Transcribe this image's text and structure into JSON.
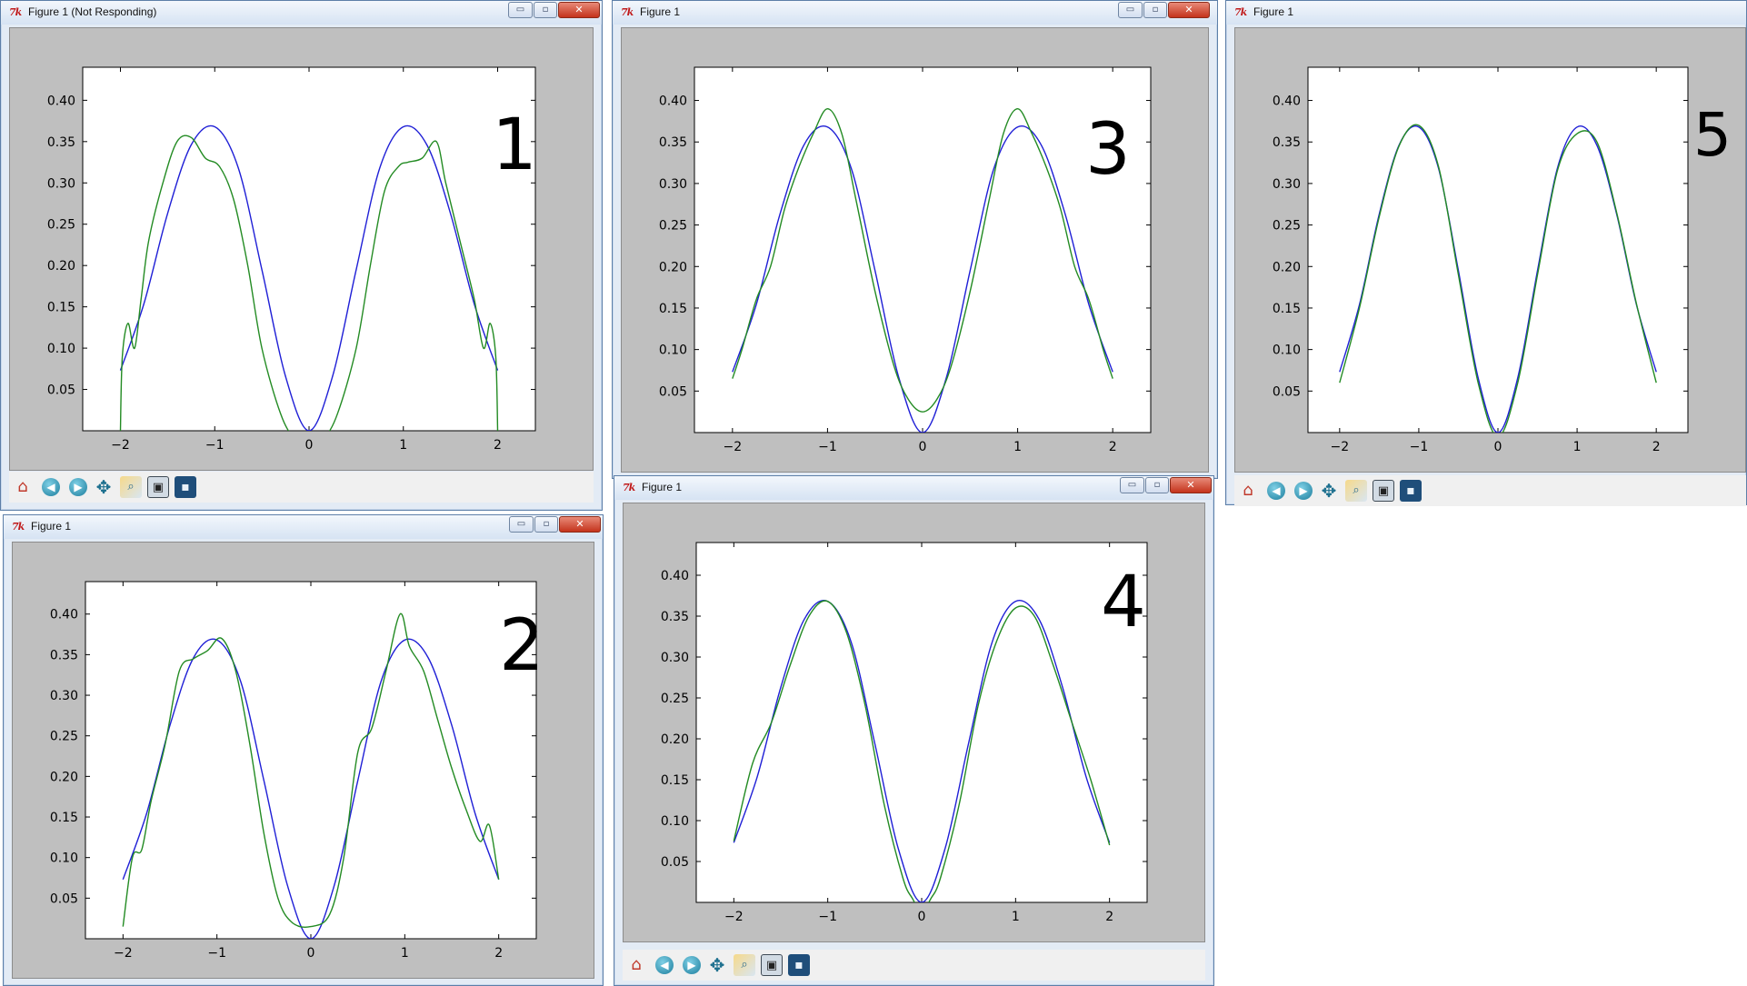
{
  "colors": {
    "curve_blue": "#1f1fd6",
    "curve_green": "#238b23",
    "plot_frame_bg": "#bfbfbf",
    "title_icon": "#c01818",
    "close_button": "#c4331c"
  },
  "window_controls": {
    "minimize": "▭",
    "maximize": "▫",
    "close": "✕"
  },
  "toolbar": {
    "icons": [
      "home-icon",
      "back-icon",
      "forward-icon",
      "pan-icon",
      "zoom-icon",
      "configure-subplots-icon",
      "save-icon"
    ],
    "glyphs": {
      "home": "⌂",
      "back": "◀",
      "forward": "▶",
      "pan": "✥",
      "zoom": "⌕",
      "config": "▣",
      "save": "▪"
    }
  },
  "windows": [
    {
      "id": "fig1",
      "title": "Figure 1 (Not Responding)",
      "annotation": "1",
      "tk_icon": "7k"
    },
    {
      "id": "fig2",
      "title": "Figure 1",
      "annotation": "2",
      "tk_icon": "7k"
    },
    {
      "id": "fig3",
      "title": "Figure 1",
      "annotation": "3",
      "tk_icon": "7k"
    },
    {
      "id": "fig4",
      "title": "Figure 1",
      "annotation": "4",
      "tk_icon": "7k"
    },
    {
      "id": "fig5",
      "title": "Figure 1",
      "annotation": "5",
      "tk_icon": "7k"
    }
  ],
  "chart_data": [
    {
      "type": "line",
      "xlim": [
        -2.4,
        2.4
      ],
      "ylim": [
        0,
        0.44
      ],
      "xticks": [
        "−2",
        "−1",
        "0",
        "1",
        "2"
      ],
      "yticks": [
        "0.05",
        "0.10",
        "0.15",
        "0.20",
        "0.25",
        "0.30",
        "0.35",
        "0.40"
      ],
      "series": [
        {
          "color": "#1f1fd6",
          "x": [
            -2,
            -1.75,
            -1.5,
            -1.25,
            -1,
            -0.75,
            -0.5,
            -0.25,
            0,
            0.25,
            0.5,
            0.75,
            1,
            1.25,
            1.5,
            1.75,
            2
          ],
          "y": [
            0.073,
            0.154,
            0.263,
            0.346,
            0.368,
            0.318,
            0.195,
            0.066,
            0.0,
            0.066,
            0.195,
            0.318,
            0.368,
            0.346,
            0.263,
            0.154,
            0.073
          ]
        },
        {
          "color": "#238b23",
          "x": [
            -2,
            -1.98,
            -1.92,
            -1.85,
            -1.78,
            -1.7,
            -1.55,
            -1.4,
            -1.25,
            -1.1,
            -0.95,
            -0.8,
            -0.65,
            -0.5,
            -0.3,
            -0.15,
            0,
            0.15,
            0.3,
            0.5,
            0.65,
            0.8,
            0.95,
            1.05,
            1.2,
            1.35,
            1.45,
            1.6,
            1.75,
            1.85,
            1.92,
            1.98,
            2
          ],
          "y": [
            0.0,
            0.09,
            0.13,
            0.1,
            0.16,
            0.23,
            0.3,
            0.35,
            0.355,
            0.33,
            0.32,
            0.28,
            0.2,
            0.1,
            0.02,
            -0.01,
            -0.02,
            -0.01,
            0.02,
            0.1,
            0.2,
            0.29,
            0.32,
            0.325,
            0.33,
            0.35,
            0.3,
            0.23,
            0.16,
            0.1,
            0.13,
            0.09,
            0.0
          ]
        }
      ]
    },
    {
      "type": "line",
      "xlim": [
        -2.4,
        2.4
      ],
      "ylim": [
        0,
        0.44
      ],
      "xticks": [
        "−2",
        "−1",
        "0",
        "1",
        "2"
      ],
      "yticks": [
        "0.05",
        "0.10",
        "0.15",
        "0.20",
        "0.25",
        "0.30",
        "0.35",
        "0.40"
      ],
      "series": [
        {
          "color": "#1f1fd6",
          "x": [
            -2,
            -1.75,
            -1.5,
            -1.25,
            -1,
            -0.75,
            -0.5,
            -0.25,
            0,
            0.25,
            0.5,
            0.75,
            1,
            1.25,
            1.5,
            1.75,
            2
          ],
          "y": [
            0.073,
            0.154,
            0.263,
            0.346,
            0.368,
            0.318,
            0.195,
            0.066,
            0.0,
            0.066,
            0.195,
            0.318,
            0.368,
            0.346,
            0.263,
            0.154,
            0.073
          ]
        },
        {
          "color": "#238b23",
          "x": [
            -2,
            -1.9,
            -1.8,
            -1.7,
            -1.55,
            -1.4,
            -1.25,
            -1.1,
            -0.95,
            -0.8,
            -0.65,
            -0.5,
            -0.35,
            -0.2,
            0,
            0.2,
            0.35,
            0.5,
            0.65,
            0.8,
            0.95,
            1.05,
            1.2,
            1.35,
            1.5,
            1.65,
            1.8,
            1.9,
            2
          ],
          "y": [
            0.015,
            0.1,
            0.11,
            0.17,
            0.24,
            0.33,
            0.345,
            0.355,
            0.37,
            0.33,
            0.24,
            0.13,
            0.05,
            0.02,
            0.015,
            0.03,
            0.1,
            0.23,
            0.26,
            0.33,
            0.4,
            0.36,
            0.33,
            0.27,
            0.21,
            0.16,
            0.12,
            0.14,
            0.073
          ]
        }
      ]
    },
    {
      "type": "line",
      "xlim": [
        -2.4,
        2.4
      ],
      "ylim": [
        0,
        0.44
      ],
      "xticks": [
        "−2",
        "−1",
        "0",
        "1",
        "2"
      ],
      "yticks": [
        "0.05",
        "0.10",
        "0.15",
        "0.20",
        "0.25",
        "0.30",
        "0.35",
        "0.40"
      ],
      "series": [
        {
          "color": "#1f1fd6",
          "x": [
            -2,
            -1.75,
            -1.5,
            -1.25,
            -1,
            -0.75,
            -0.5,
            -0.25,
            0,
            0.25,
            0.5,
            0.75,
            1,
            1.25,
            1.5,
            1.75,
            2
          ],
          "y": [
            0.073,
            0.154,
            0.263,
            0.346,
            0.368,
            0.318,
            0.195,
            0.066,
            0.0,
            0.066,
            0.195,
            0.318,
            0.368,
            0.346,
            0.263,
            0.154,
            0.073
          ]
        },
        {
          "color": "#238b23",
          "x": [
            -2,
            -1.9,
            -1.75,
            -1.6,
            -1.45,
            -1.3,
            -1.15,
            -1,
            -0.85,
            -0.7,
            -0.5,
            -0.3,
            -0.15,
            0,
            0.15,
            0.3,
            0.5,
            0.7,
            0.85,
            1,
            1.15,
            1.3,
            1.45,
            1.6,
            1.75,
            1.9,
            2
          ],
          "y": [
            0.065,
            0.1,
            0.16,
            0.2,
            0.27,
            0.32,
            0.36,
            0.39,
            0.36,
            0.28,
            0.17,
            0.08,
            0.04,
            0.025,
            0.04,
            0.08,
            0.17,
            0.28,
            0.36,
            0.39,
            0.36,
            0.32,
            0.27,
            0.2,
            0.16,
            0.1,
            0.065
          ]
        }
      ]
    },
    {
      "type": "line",
      "xlim": [
        -2.4,
        2.4
      ],
      "ylim": [
        0,
        0.44
      ],
      "xticks": [
        "−2",
        "−1",
        "0",
        "1",
        "2"
      ],
      "yticks": [
        "0.05",
        "0.10",
        "0.15",
        "0.20",
        "0.25",
        "0.30",
        "0.35",
        "0.40"
      ],
      "series": [
        {
          "color": "#1f1fd6",
          "x": [
            -2,
            -1.75,
            -1.5,
            -1.25,
            -1,
            -0.75,
            -0.5,
            -0.25,
            0,
            0.25,
            0.5,
            0.75,
            1,
            1.25,
            1.5,
            1.75,
            2
          ],
          "y": [
            0.073,
            0.154,
            0.263,
            0.346,
            0.368,
            0.318,
            0.195,
            0.066,
            0.0,
            0.066,
            0.195,
            0.318,
            0.368,
            0.346,
            0.263,
            0.154,
            0.073
          ]
        },
        {
          "color": "#238b23",
          "x": [
            -2,
            -1.8,
            -1.6,
            -1.4,
            -1.2,
            -1,
            -0.8,
            -0.6,
            -0.4,
            -0.2,
            -0.1,
            0,
            0.1,
            0.2,
            0.4,
            0.6,
            0.8,
            1,
            1.2,
            1.4,
            1.6,
            1.8,
            2
          ],
          "y": [
            0.075,
            0.17,
            0.22,
            0.29,
            0.35,
            0.368,
            0.33,
            0.24,
            0.12,
            0.03,
            0.005,
            -0.01,
            0.005,
            0.03,
            0.12,
            0.24,
            0.32,
            0.36,
            0.35,
            0.29,
            0.22,
            0.15,
            0.07
          ]
        }
      ]
    },
    {
      "type": "line",
      "xlim": [
        -2.4,
        2.4
      ],
      "ylim": [
        0,
        0.44
      ],
      "xticks": [
        "−2",
        "−1",
        "0",
        "1",
        "2"
      ],
      "yticks": [
        "0.05",
        "0.10",
        "0.15",
        "0.20",
        "0.25",
        "0.30",
        "0.35",
        "0.40"
      ],
      "series": [
        {
          "color": "#1f1fd6",
          "x": [
            -2,
            -1.75,
            -1.5,
            -1.25,
            -1,
            -0.75,
            -0.5,
            -0.25,
            0,
            0.25,
            0.5,
            0.75,
            1,
            1.25,
            1.5,
            1.75,
            2
          ],
          "y": [
            0.073,
            0.154,
            0.263,
            0.346,
            0.368,
            0.318,
            0.195,
            0.066,
            0.0,
            0.066,
            0.195,
            0.318,
            0.368,
            0.346,
            0.263,
            0.154,
            0.073
          ]
        },
        {
          "color": "#238b23",
          "x": [
            -2,
            -1.75,
            -1.5,
            -1.25,
            -1,
            -0.75,
            -0.5,
            -0.25,
            0,
            0.25,
            0.5,
            0.75,
            1,
            1.25,
            1.5,
            1.75,
            2
          ],
          "y": [
            0.06,
            0.15,
            0.26,
            0.345,
            0.37,
            0.32,
            0.19,
            0.06,
            -0.005,
            0.06,
            0.19,
            0.315,
            0.36,
            0.35,
            0.265,
            0.155,
            0.06
          ]
        }
      ]
    }
  ]
}
